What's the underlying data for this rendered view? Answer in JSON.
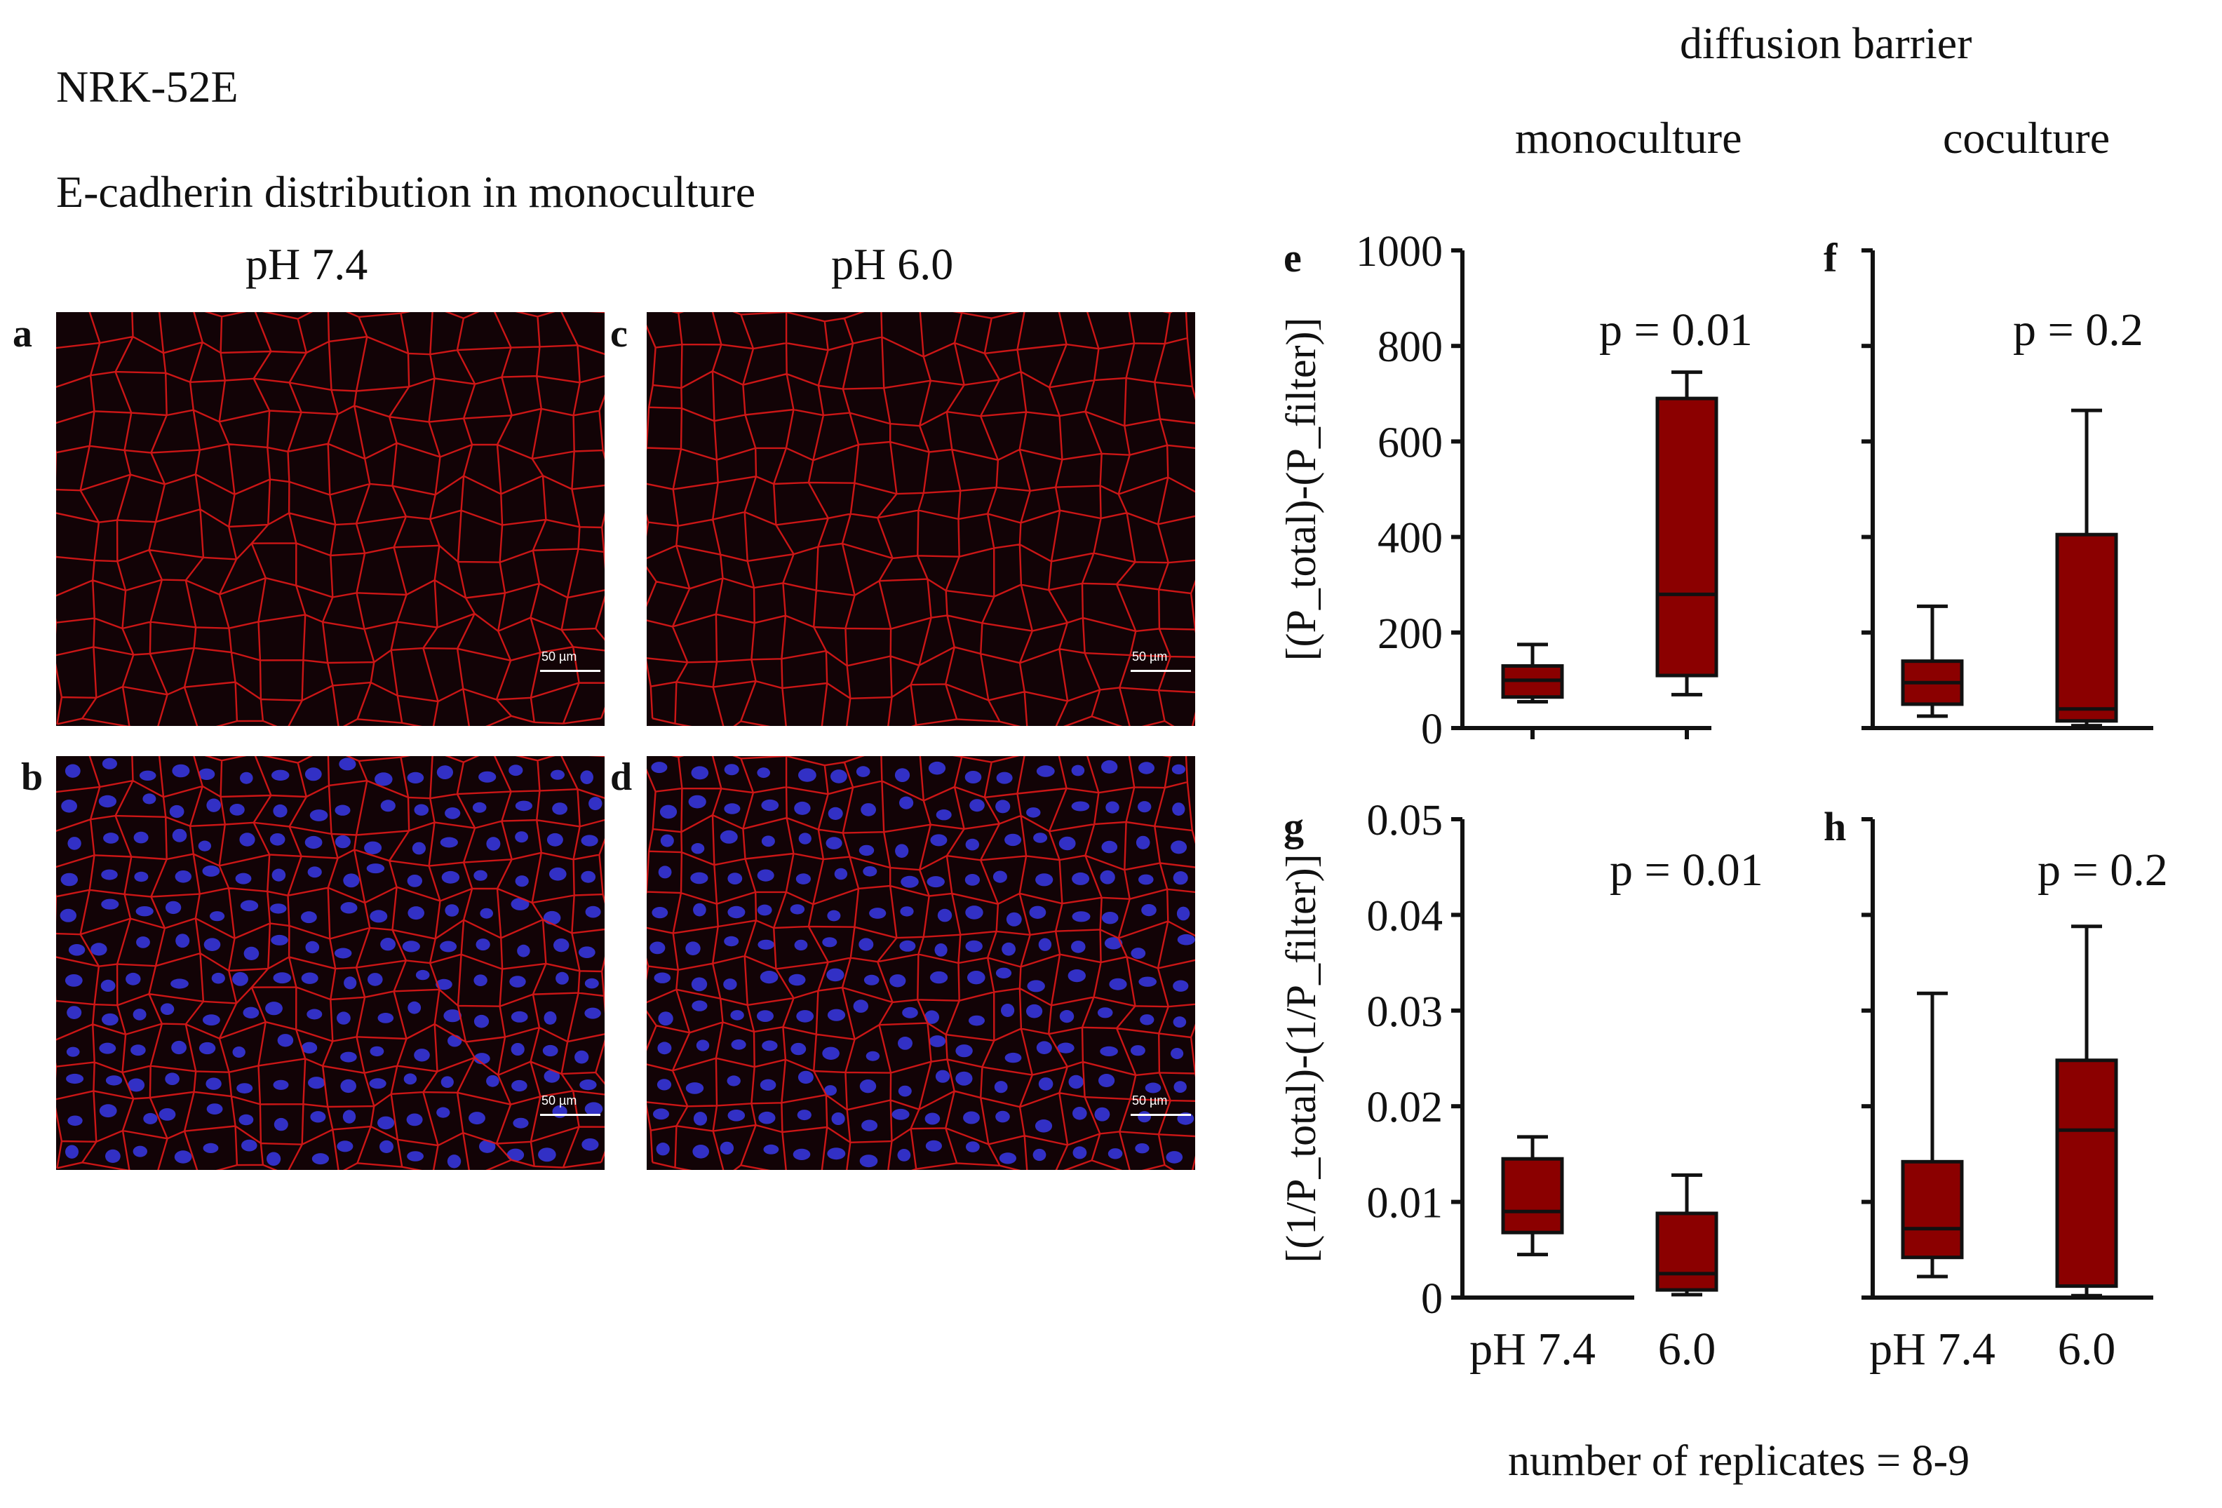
{
  "figure": {
    "cell_line": "NRK-52E",
    "subtitle": "E-cadherin distribution in monoculture",
    "micro_columns": [
      "pH 7.4",
      "pH 6.0"
    ],
    "barrier_title": "diffusion barrier",
    "barrier_columns": [
      "monoculture",
      "coculture"
    ],
    "footer": "number of replicates = 8-9",
    "colors": {
      "box_fill": "#8b0000",
      "stain_red": "#e01818",
      "stain_blue": "#3838e8",
      "panel_bg": "#120306"
    }
  },
  "micrographs": [
    {
      "label": "a",
      "stain": "E-cadherin",
      "scale_bar": "50 µm"
    },
    {
      "label": "c",
      "stain": "E-cadherin",
      "scale_bar": "50 µm"
    },
    {
      "label": "b",
      "stain": "E-cadherin + nuclei",
      "scale_bar": "50 µm"
    },
    {
      "label": "d",
      "stain": "E-cadherin + nuclei",
      "scale_bar": "50 µm"
    }
  ],
  "chart_data": [
    {
      "panel": "e",
      "type": "box",
      "culture": "monoculture",
      "ylabel": "[(P_total)-(P_filter)]",
      "ylim": [
        0,
        1000
      ],
      "yticks": [
        0,
        200,
        400,
        600,
        800,
        1000
      ],
      "show_tick_labels": true,
      "p_value": "p = 0.01",
      "categories": [
        "pH 7.4",
        "6.0"
      ],
      "show_x_labels": false,
      "boxes": [
        {
          "min": 55,
          "q1": 65,
          "median": 100,
          "q3": 130,
          "max": 175
        },
        {
          "min": 70,
          "q1": 110,
          "median": 280,
          "q3": 690,
          "max": 745
        }
      ]
    },
    {
      "panel": "f",
      "type": "box",
      "culture": "coculture",
      "ylabel": "",
      "ylim": [
        0,
        1000
      ],
      "yticks": [
        0,
        200,
        400,
        600,
        800,
        1000
      ],
      "show_tick_labels": false,
      "p_value": "p = 0.2",
      "categories": [
        "pH 7.4",
        "6.0"
      ],
      "show_x_labels": false,
      "boxes": [
        {
          "min": 25,
          "q1": 50,
          "median": 95,
          "q3": 140,
          "max": 255
        },
        {
          "min": 5,
          "q1": 15,
          "median": 40,
          "q3": 405,
          "max": 665
        }
      ]
    },
    {
      "panel": "g",
      "type": "box",
      "culture": "monoculture",
      "ylabel": "[(1/P_total)-(1/P_filter)]",
      "ylim": [
        0,
        0.05
      ],
      "yticks": [
        0,
        0.01,
        0.02,
        0.03,
        0.04,
        0.05
      ],
      "show_tick_labels": true,
      "p_value": "p = 0.01",
      "categories": [
        "pH 7.4",
        "6.0"
      ],
      "show_x_labels": true,
      "boxes": [
        {
          "min": 0.0045,
          "q1": 0.0068,
          "median": 0.009,
          "q3": 0.0145,
          "max": 0.0168
        },
        {
          "min": 0.0003,
          "q1": 0.0008,
          "median": 0.0025,
          "q3": 0.0088,
          "max": 0.0128
        }
      ]
    },
    {
      "panel": "h",
      "type": "box",
      "culture": "coculture",
      "ylabel": "",
      "ylim": [
        0,
        0.05
      ],
      "yticks": [
        0,
        0.01,
        0.02,
        0.03,
        0.04,
        0.05
      ],
      "show_tick_labels": false,
      "p_value": "p = 0.2",
      "categories": [
        "pH 7.4",
        "6.0"
      ],
      "show_x_labels": true,
      "boxes": [
        {
          "min": 0.0022,
          "q1": 0.0042,
          "median": 0.0072,
          "q3": 0.0142,
          "max": 0.0318
        },
        {
          "min": 0.0002,
          "q1": 0.0012,
          "median": 0.0175,
          "q3": 0.0248,
          "max": 0.0388
        }
      ]
    }
  ]
}
